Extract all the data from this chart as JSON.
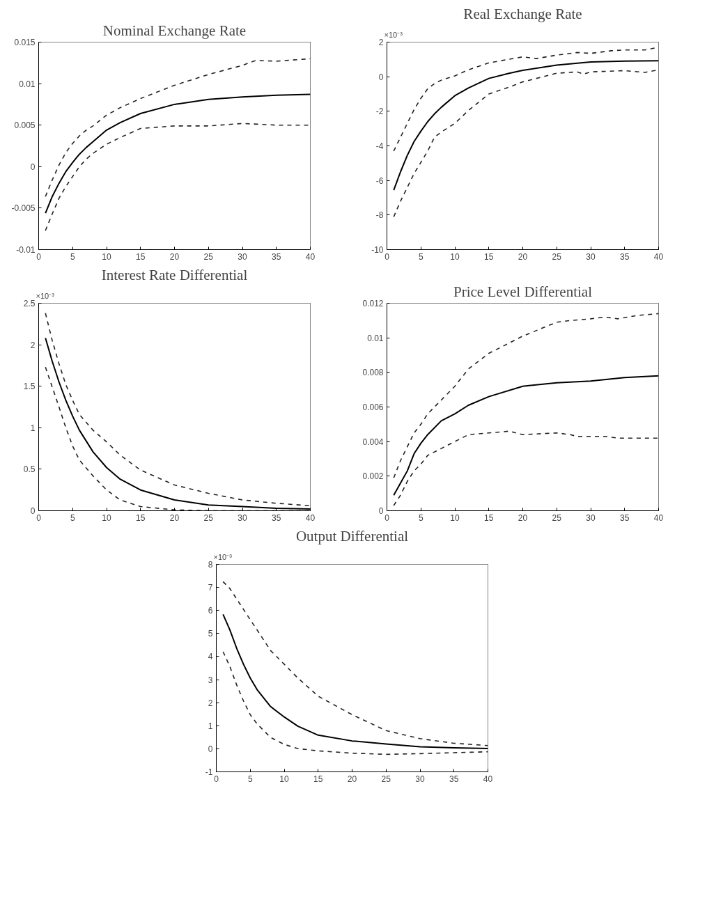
{
  "chart_data": [
    {
      "type": "line",
      "title": "Nominal Exchange Rate",
      "xlim": [
        0,
        40
      ],
      "xticks": [
        0,
        5,
        10,
        15,
        20,
        25,
        30,
        35,
        40
      ],
      "ylim": [
        -0.01,
        0.015
      ],
      "yticks": [
        -0.01,
        -0.005,
        0,
        0.005,
        0.01,
        0.015
      ],
      "series": [
        {
          "color": "#000000",
          "line_style": "solid",
          "x": [
            1,
            2,
            3,
            4,
            5,
            6,
            7,
            8,
            10,
            12,
            15,
            20,
            25,
            30,
            35,
            40
          ],
          "values": [
            -0.0056,
            -0.0036,
            -0.002,
            -0.0006,
            0.0005,
            0.0015,
            0.0023,
            0.003,
            0.0044,
            0.0053,
            0.0064,
            0.0075,
            0.0081,
            0.0084,
            0.0086,
            0.0087
          ]
        },
        {
          "color": "#222222",
          "line_style": "dashed",
          "x": [
            1,
            2,
            3,
            4,
            5,
            6,
            7,
            8,
            10,
            12,
            15,
            20,
            25,
            30,
            32,
            35,
            40
          ],
          "values": [
            -0.0036,
            -0.0016,
            0.0002,
            0.0017,
            0.0028,
            0.0037,
            0.0044,
            0.0049,
            0.0062,
            0.0071,
            0.0082,
            0.0098,
            0.0111,
            0.0122,
            0.0128,
            0.0127,
            0.013
          ]
        },
        {
          "color": "#222222",
          "line_style": "dashed",
          "x": [
            1,
            2,
            3,
            4,
            5,
            6,
            7,
            8,
            10,
            12,
            15,
            20,
            25,
            30,
            35,
            40
          ],
          "values": [
            -0.0077,
            -0.0057,
            -0.0038,
            -0.0024,
            -0.0012,
            0,
            0.0009,
            0.0016,
            0.0027,
            0.0035,
            0.0046,
            0.0049,
            0.0049,
            0.0052,
            0.005,
            0.005
          ]
        }
      ]
    },
    {
      "type": "line",
      "title": "Real Exchange Rate",
      "annotations": [
        "×10⁻³"
      ],
      "xlim": [
        0,
        40
      ],
      "xticks": [
        0,
        5,
        10,
        15,
        20,
        25,
        30,
        35,
        40
      ],
      "ylim": [
        -10,
        2
      ],
      "yticks": [
        -10,
        -8,
        -6,
        -4,
        -2,
        0,
        2
      ],
      "series": [
        {
          "color": "#000000",
          "line_style": "solid",
          "x": [
            1,
            2,
            3,
            4,
            5,
            6,
            7,
            8,
            10,
            12,
            15,
            18,
            20,
            25,
            30,
            35,
            40
          ],
          "values": [
            -6.56,
            -5.5,
            -4.55,
            -3.75,
            -3.15,
            -2.6,
            -2.15,
            -1.77,
            -1.1,
            -0.65,
            -0.1,
            0.2,
            0.37,
            0.67,
            0.85,
            0.9,
            0.92
          ]
        },
        {
          "color": "#222222",
          "line_style": "dashed",
          "x": [
            1,
            2,
            3,
            4,
            5,
            6,
            7,
            8,
            10,
            12,
            15,
            20,
            22,
            25,
            28,
            30,
            33,
            35,
            38,
            40
          ],
          "values": [
            -4.3,
            -3.5,
            -2.7,
            -1.9,
            -1.25,
            -0.7,
            -0.4,
            -0.2,
            0.05,
            0.4,
            0.8,
            1.15,
            1.05,
            1.25,
            1.4,
            1.35,
            1.5,
            1.55,
            1.55,
            1.7
          ]
        },
        {
          "color": "#222222",
          "line_style": "dashed",
          "x": [
            1,
            2,
            3,
            4,
            5,
            6,
            7,
            8,
            10,
            12,
            15,
            18,
            20,
            22,
            25,
            28,
            29,
            30,
            35,
            38,
            40
          ],
          "values": [
            -8.1,
            -7.2,
            -6.4,
            -5.6,
            -4.95,
            -4.3,
            -3.5,
            -3.2,
            -2.7,
            -1.95,
            -1.0,
            -0.6,
            -0.3,
            -0.1,
            0.2,
            0.28,
            0.15,
            0.28,
            0.35,
            0.25,
            0.4
          ]
        }
      ]
    },
    {
      "type": "line",
      "title": "Interest Rate Differential",
      "annotations": [
        "×10⁻³"
      ],
      "xlim": [
        0,
        40
      ],
      "xticks": [
        0,
        5,
        10,
        15,
        20,
        25,
        30,
        35,
        40
      ],
      "ylim": [
        0,
        2.5
      ],
      "yticks": [
        0,
        0.5,
        1,
        1.5,
        2,
        2.5
      ],
      "series": [
        {
          "color": "#000000",
          "line_style": "solid",
          "x": [
            1,
            2,
            3,
            4,
            5,
            6,
            8,
            10,
            12,
            15,
            20,
            25,
            30,
            35,
            40
          ],
          "values": [
            2.08,
            1.8,
            1.55,
            1.33,
            1.14,
            0.97,
            0.71,
            0.52,
            0.38,
            0.25,
            0.13,
            0.07,
            0.05,
            0.03,
            0.02
          ]
        },
        {
          "color": "#222222",
          "line_style": "dashed",
          "x": [
            1,
            2,
            3,
            4,
            5,
            6,
            8,
            10,
            12,
            15,
            20,
            25,
            30,
            35,
            40
          ],
          "values": [
            2.38,
            2.05,
            1.77,
            1.52,
            1.33,
            1.16,
            0.97,
            0.83,
            0.67,
            0.49,
            0.31,
            0.21,
            0.13,
            0.09,
            0.06
          ]
        },
        {
          "color": "#222222",
          "line_style": "dashed",
          "x": [
            1,
            2,
            3,
            4,
            5,
            6,
            8,
            10,
            12,
            15,
            20,
            25,
            30,
            35,
            40
          ],
          "values": [
            1.73,
            1.49,
            1.25,
            1.0,
            0.78,
            0.61,
            0.42,
            0.25,
            0.13,
            0.05,
            0.01,
            0,
            0,
            0,
            0
          ]
        }
      ]
    },
    {
      "type": "line",
      "title": "Price Level Differential",
      "xlim": [
        0,
        40
      ],
      "xticks": [
        0,
        5,
        10,
        15,
        20,
        25,
        30,
        35,
        40
      ],
      "ylim": [
        0,
        0.012
      ],
      "yticks": [
        0,
        0.002,
        0.004,
        0.006,
        0.008,
        0.01,
        0.012
      ],
      "series": [
        {
          "color": "#000000",
          "line_style": "solid",
          "x": [
            1,
            2,
            3,
            4,
            5,
            6,
            8,
            10,
            12,
            15,
            20,
            25,
            30,
            35,
            40
          ],
          "values": [
            0.0009,
            0.0016,
            0.0023,
            0.0033,
            0.0039,
            0.0044,
            0.0052,
            0.0056,
            0.0061,
            0.0066,
            0.0072,
            0.0074,
            0.0075,
            0.0077,
            0.0078
          ]
        },
        {
          "color": "#222222",
          "line_style": "dashed",
          "x": [
            1,
            2,
            3,
            4,
            5,
            6,
            8,
            10,
            12,
            15,
            18,
            20,
            25,
            27,
            30,
            32,
            34,
            37,
            40
          ],
          "values": [
            0.0019,
            0.0029,
            0.0037,
            0.0045,
            0.005,
            0.0056,
            0.0064,
            0.0072,
            0.0082,
            0.0091,
            0.0097,
            0.0101,
            0.0109,
            0.011,
            0.0111,
            0.0112,
            0.0111,
            0.0113,
            0.0114
          ]
        },
        {
          "color": "#222222",
          "line_style": "dashed",
          "x": [
            1,
            2,
            3,
            4,
            5,
            6,
            8,
            10,
            12,
            15,
            18,
            20,
            25,
            27,
            28,
            32,
            34,
            40
          ],
          "values": [
            0.0003,
            0.0009,
            0.0017,
            0.0023,
            0.0027,
            0.0032,
            0.0036,
            0.004,
            0.0044,
            0.0045,
            0.0046,
            0.0044,
            0.0045,
            0.0044,
            0.0043,
            0.0043,
            0.0042,
            0.0042
          ]
        }
      ]
    },
    {
      "type": "line",
      "title": "Output Differential",
      "annotations": [
        "×10⁻³"
      ],
      "xlim": [
        0,
        40
      ],
      "xticks": [
        0,
        5,
        10,
        15,
        20,
        25,
        30,
        35,
        40
      ],
      "ylim": [
        -1,
        8
      ],
      "yticks": [
        -1,
        0,
        1,
        2,
        3,
        4,
        5,
        6,
        7,
        8
      ],
      "series": [
        {
          "color": "#000000",
          "line_style": "solid",
          "x": [
            1,
            2,
            3,
            4,
            5,
            6,
            8,
            10,
            12,
            15,
            20,
            25,
            30,
            35,
            40
          ],
          "values": [
            5.83,
            5.16,
            4.36,
            3.67,
            3.07,
            2.57,
            1.83,
            1.38,
            0.98,
            0.59,
            0.34,
            0.21,
            0.09,
            0.04,
            0.01
          ]
        },
        {
          "color": "#222222",
          "line_style": "dashed",
          "x": [
            1,
            2,
            3,
            4,
            5,
            6,
            8,
            10,
            12,
            15,
            20,
            25,
            30,
            35,
            40
          ],
          "values": [
            7.25,
            6.95,
            6.5,
            6.05,
            5.6,
            5.16,
            4.26,
            3.67,
            3.07,
            2.28,
            1.48,
            0.79,
            0.44,
            0.24,
            0.14
          ]
        },
        {
          "color": "#222222",
          "line_style": "dashed",
          "x": [
            1,
            2,
            3,
            4,
            5,
            6,
            8,
            10,
            12,
            15,
            20,
            25,
            30,
            35,
            40
          ],
          "values": [
            4.21,
            3.57,
            2.77,
            2.08,
            1.48,
            1.08,
            0.49,
            0.19,
            0.01,
            -0.09,
            -0.19,
            -0.24,
            -0.21,
            -0.17,
            -0.13
          ]
        }
      ]
    }
  ]
}
